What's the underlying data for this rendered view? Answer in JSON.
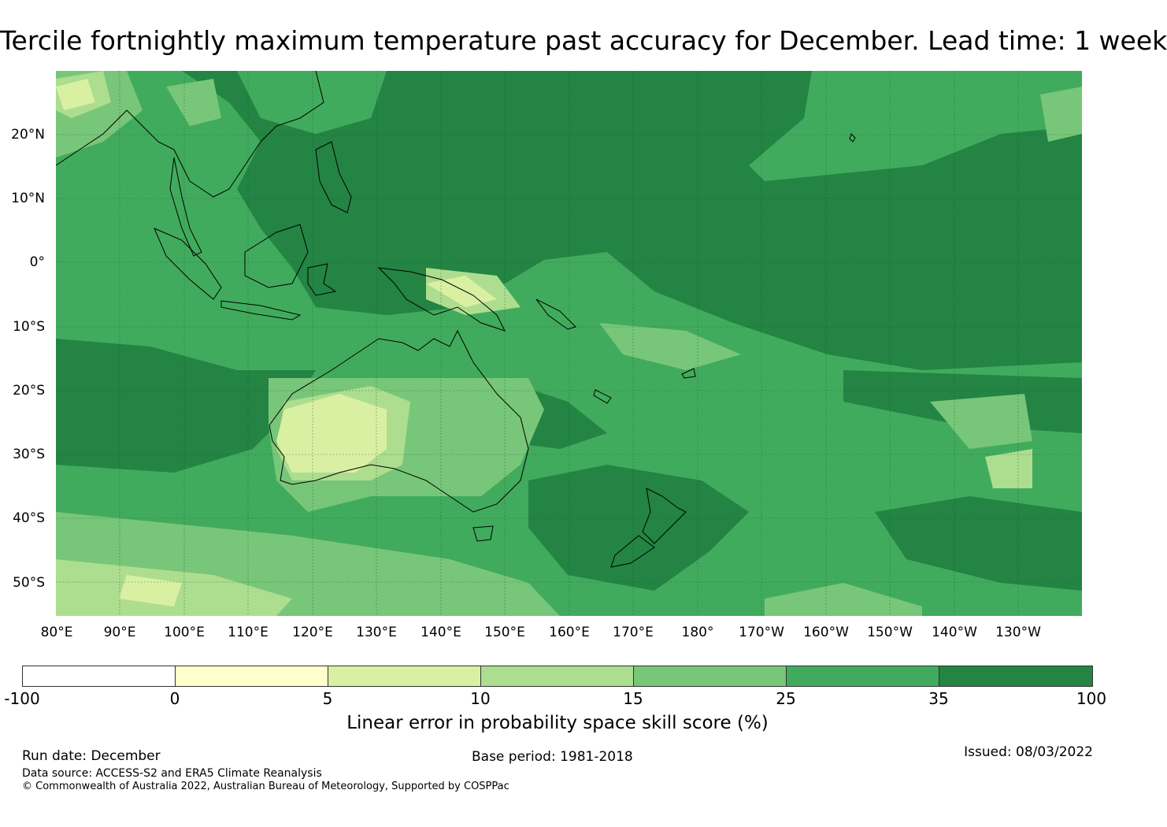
{
  "title": "Tercile fortnightly maximum temperature past accuracy for December. Lead time: 1 week",
  "map": {
    "lon_labels": [
      "80°E",
      "90°E",
      "100°E",
      "110°E",
      "120°E",
      "130°E",
      "140°E",
      "150°E",
      "160°E",
      "170°E",
      "180°",
      "170°W",
      "160°W",
      "150°W",
      "140°W",
      "130°W"
    ],
    "lat_labels": [
      "20°N",
      "10°N",
      "0°",
      "10°S",
      "20°S",
      "30°S",
      "40°S",
      "50°S"
    ],
    "colors": {
      "ocean_high": "#238443",
      "skill_25_35": "#41ab5d",
      "skill_15_25": "#78c679",
      "skill_10_15": "#addd8e",
      "skill_5_10": "#d9f0a3",
      "skill_0_5": "#ffffcc",
      "coastline": "#000000",
      "grid": "#1a4d2e"
    }
  },
  "colorbar": {
    "segments": [
      {
        "from": "-100",
        "to": "0",
        "color": "#ffffff"
      },
      {
        "from": "0",
        "to": "5",
        "color": "#ffffcc"
      },
      {
        "from": "5",
        "to": "10",
        "color": "#d9f0a3"
      },
      {
        "from": "10",
        "to": "15",
        "color": "#addd8e"
      },
      {
        "from": "15",
        "to": "25",
        "color": "#78c679"
      },
      {
        "from": "25",
        "to": "35",
        "color": "#41ab5d"
      },
      {
        "from": "35",
        "to": "100",
        "color": "#238443"
      }
    ],
    "tick_labels": [
      "-100",
      "0",
      "5",
      "10",
      "15",
      "25",
      "35",
      "100"
    ],
    "title": "Linear error in probability space skill score (%)"
  },
  "footer": {
    "run_date": "Run date: December",
    "base_period": "Base period: 1981-2018",
    "issued": "Issued: 08/03/2022",
    "data_source": "Data source: ACCESS-S2 and ERA5 Climate Reanalysis",
    "copyright": "© Commonwealth of Australia 2022, Australian Bureau of Meteorology, Supported by COSPPac"
  }
}
